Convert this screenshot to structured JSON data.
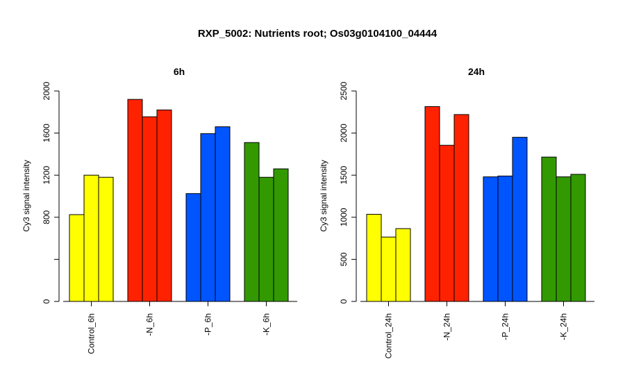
{
  "title": "RXP_5002: Nutrients root; Os03g0104100_04444",
  "chart_data": [
    {
      "type": "bar",
      "title": "6h",
      "ylabel": "Cy3 signal intensity",
      "xlabel": "",
      "ylim": [
        0,
        2000
      ],
      "yticks": [
        0,
        400,
        800,
        1200,
        1600,
        2000
      ],
      "ytick_labels": [
        "0",
        "",
        "800",
        "1200",
        "1600",
        "2000"
      ],
      "grid": false,
      "groups": [
        {
          "label": "Control_6h",
          "color": "#ffff00",
          "values": [
            825,
            1200,
            1180
          ]
        },
        {
          "label": "-N_6h",
          "color": "#ff2200",
          "values": [
            1920,
            1755,
            1820
          ]
        },
        {
          "label": "-P_6h",
          "color": "#0055ff",
          "values": [
            1025,
            1595,
            1660
          ]
        },
        {
          "label": "-K_6h",
          "color": "#339900",
          "values": [
            1510,
            1180,
            1260
          ]
        }
      ]
    },
    {
      "type": "bar",
      "title": "24h",
      "ylabel": "Cy3 signal intensity",
      "xlabel": "",
      "ylim": [
        0,
        2500
      ],
      "yticks": [
        0,
        500,
        1000,
        1500,
        2000,
        2500
      ],
      "ytick_labels": [
        "0",
        "500",
        "1000",
        "1500",
        "2000",
        "2500"
      ],
      "grid": false,
      "groups": [
        {
          "label": "Control_24h",
          "color": "#ffff00",
          "values": [
            1035,
            765,
            865
          ]
        },
        {
          "label": "-N_24h",
          "color": "#ff2200",
          "values": [
            2315,
            1855,
            2220
          ]
        },
        {
          "label": "-P_24h",
          "color": "#0055ff",
          "values": [
            1480,
            1490,
            1950
          ]
        },
        {
          "label": "-K_24h",
          "color": "#339900",
          "values": [
            1715,
            1480,
            1510
          ]
        }
      ]
    }
  ]
}
